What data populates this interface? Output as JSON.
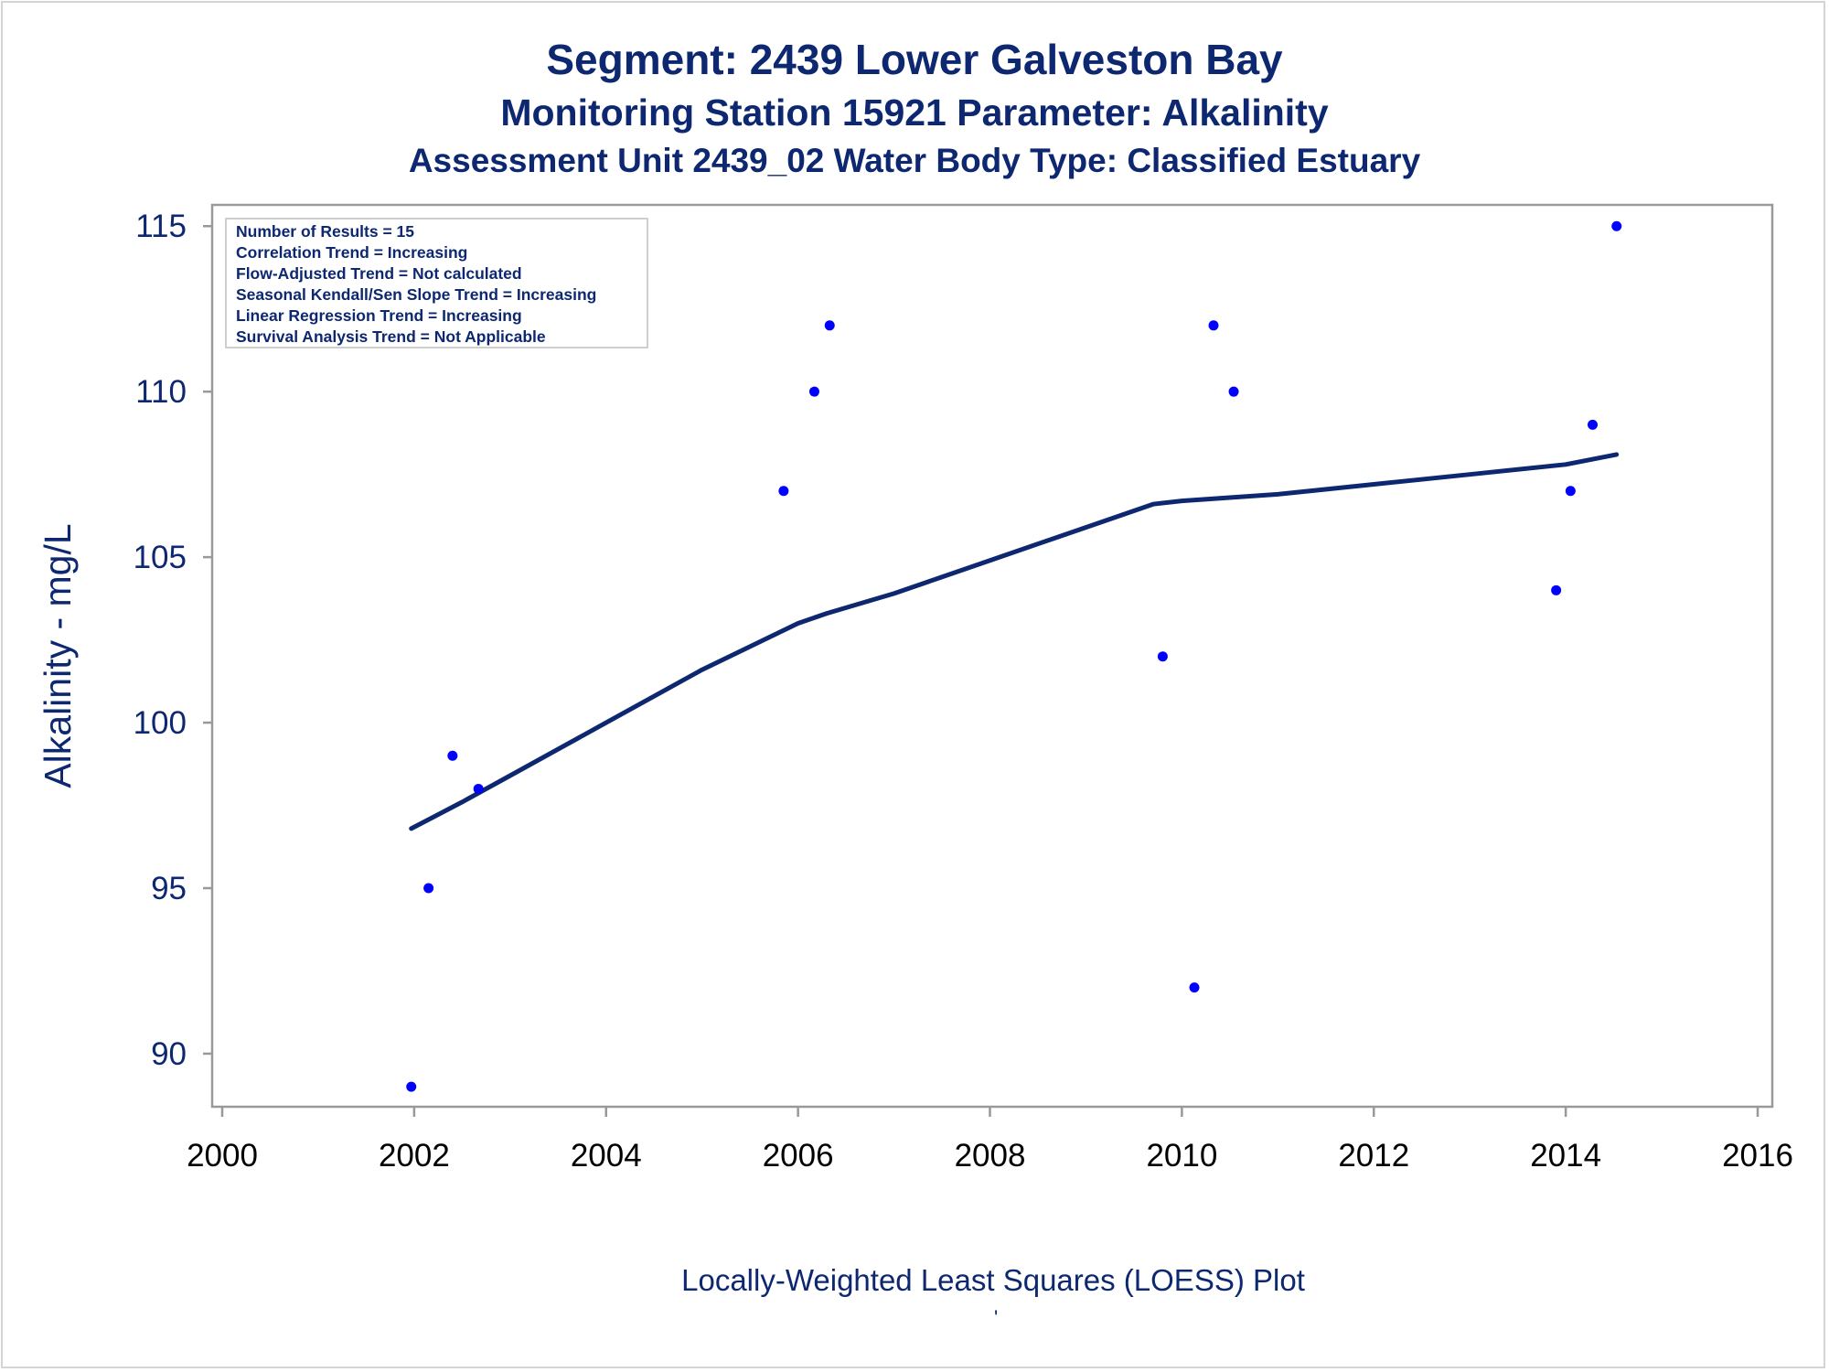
{
  "titles": {
    "line1": "Segment: 2439  Lower Galveston Bay",
    "line2": "Monitoring Station 15921 Parameter: Alkalinity",
    "line3": "Assessment Unit 2439_02   Water Body Type: Classified Estuary"
  },
  "stats_box": [
    "Number of Results = 15",
    "Correlation Trend = Increasing",
    "Flow-Adjusted Trend = Not calculated",
    "Seasonal Kendall/Sen Slope Trend = Increasing",
    "Linear Regression Trend = Increasing",
    "Survival Analysis Trend = Not Applicable"
  ],
  "footnote_mark": "'",
  "colors": {
    "text": "#0d2870",
    "points": "#0000ff",
    "loess_line": "#0d2870",
    "axis": "#999999"
  },
  "chart_data": {
    "type": "scatter",
    "xlabel": "Locally-Weighted Least Squares (LOESS) Plot",
    "ylabel": "Alkalinity - mg/L",
    "xlim": [
      2000,
      2016
    ],
    "ylim": [
      88.7,
      115.2
    ],
    "xticks": [
      2000,
      2002,
      2004,
      2006,
      2008,
      2010,
      2012,
      2014,
      2016
    ],
    "yticks": [
      90,
      95,
      100,
      105,
      110,
      115
    ],
    "grid": false,
    "series": [
      {
        "kind": "points",
        "x": [
          2001.97,
          2002.15,
          2002.4,
          2002.67,
          2005.85,
          2006.17,
          2006.33,
          2009.8,
          2010.13,
          2010.33,
          2010.54,
          2013.9,
          2014.05,
          2014.28,
          2014.53
        ],
        "y": [
          89,
          95,
          99,
          98,
          107,
          110,
          112,
          102,
          92,
          112,
          110,
          104,
          107,
          109,
          115
        ]
      },
      {
        "kind": "loess",
        "x": [
          2001.97,
          2002.5,
          2003,
          2004,
          2005,
          2006,
          2006.3,
          2007,
          2008,
          2009,
          2009.7,
          2010,
          2011,
          2012,
          2013,
          2014,
          2014.53
        ],
        "y": [
          96.8,
          97.6,
          98.4,
          100.0,
          101.6,
          103.0,
          103.3,
          103.9,
          104.9,
          105.9,
          106.6,
          106.7,
          106.9,
          107.2,
          107.5,
          107.8,
          108.1
        ]
      }
    ]
  }
}
